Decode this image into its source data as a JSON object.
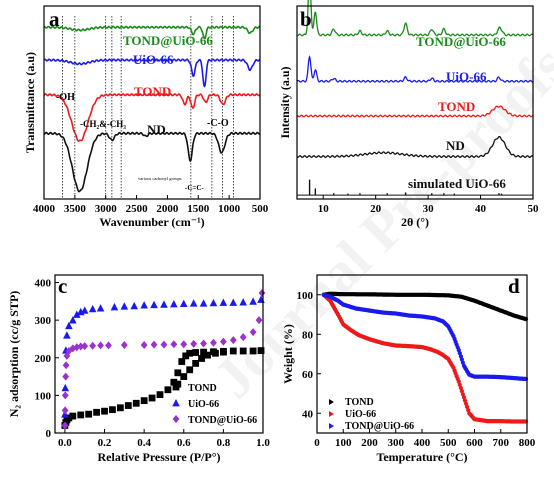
{
  "figure": {
    "watermark": "Journal Pre-proofs"
  },
  "chart_data": [
    {
      "panel": "a",
      "type": "line",
      "xlabel": "Wavenumber (cm⁻¹)",
      "ylabel": "Transmittance (a.u)",
      "xlim": [
        4000,
        500
      ],
      "x_ticks": [
        4000,
        3500,
        3000,
        2500,
        2000,
        1500,
        1000,
        500
      ],
      "annotations": {
        "oh": "-OH",
        "ch": "-CH₂&-CH₃",
        "co": "-C-O",
        "carbonyl": "various carbonyl groups",
        "cc": "-C=C-"
      },
      "vlines": [
        3700,
        3500,
        3000,
        2900,
        2750,
        1620,
        1280,
        1110,
        930
      ],
      "series": [
        {
          "name": "TOND@UiO-66",
          "color": "#1a8a1a",
          "baseline": 0.89,
          "peaks": [
            [
              1580,
              0.035,
              30
            ],
            [
              1400,
              0.06,
              25
            ],
            [
              660,
              0.03,
              40
            ],
            [
              3420,
              0.015,
              150
            ]
          ]
        },
        {
          "name": "UiO-66",
          "color": "#1a1aee",
          "baseline": 0.72,
          "peaks": [
            [
              1580,
              0.08,
              30
            ],
            [
              1400,
              0.14,
              25
            ],
            [
              660,
              0.05,
              40
            ],
            [
              3420,
              0.02,
              150
            ]
          ]
        },
        {
          "name": "TOND",
          "color": "#ee1a1a",
          "baseline": 0.54,
          "peaks": [
            [
              3420,
              0.24,
              130
            ],
            [
              1720,
              0.05,
              30
            ],
            [
              1590,
              0.07,
              30
            ],
            [
              1380,
              0.04,
              30
            ],
            [
              1100,
              0.05,
              40
            ]
          ]
        },
        {
          "name": "ND",
          "color": "#111111",
          "baseline": 0.34,
          "peaks": [
            [
              3420,
              0.3,
              120
            ],
            [
              2900,
              0.035,
              40
            ],
            [
              1630,
              0.14,
              35
            ],
            [
              1120,
              0.1,
              50
            ],
            [
              2350,
              0.015,
              30
            ]
          ]
        }
      ]
    },
    {
      "panel": "b",
      "type": "line",
      "xlabel": "2θ (°)",
      "ylabel": "Intensity (a.u)",
      "xlim": [
        5,
        50
      ],
      "x_ticks": [
        10,
        20,
        30,
        40,
        50
      ],
      "series": [
        {
          "name": "TOND@UiO-66",
          "color": "#1a8a1a",
          "baseline": 0.85,
          "peaks": [
            [
              7.4,
              0.3,
              0.25
            ],
            [
              8.5,
              0.12,
              0.25
            ],
            [
              12.0,
              0.03,
              0.3
            ],
            [
              17.0,
              0.02,
              0.3
            ],
            [
              22.2,
              0.02,
              0.3
            ],
            [
              25.7,
              0.06,
              0.3
            ],
            [
              30.7,
              0.03,
              0.3
            ],
            [
              33.0,
              0.03,
              0.3
            ],
            [
              43.5,
              0.03,
              0.3
            ],
            [
              44.0,
              0.02,
              0.3
            ]
          ]
        },
        {
          "name": "UiO-66",
          "color": "#1a1aee",
          "baseline": 0.61,
          "peaks": [
            [
              7.4,
              0.13,
              0.25
            ],
            [
              8.5,
              0.06,
              0.25
            ],
            [
              12.0,
              0.015,
              0.3
            ],
            [
              25.7,
              0.02,
              0.3
            ],
            [
              30.7,
              0.015,
              0.3
            ],
            [
              43.5,
              0.02,
              0.3
            ]
          ]
        },
        {
          "name": "TOND",
          "color": "#ee1a1a",
          "baseline": 0.43,
          "peaks": [
            [
              43.5,
              0.05,
              1.2
            ]
          ]
        },
        {
          "name": "ND",
          "color": "#111111",
          "baseline": 0.22,
          "peaks": [
            [
              21.5,
              0.02,
              3.5
            ],
            [
              43.5,
              0.1,
              1.2
            ]
          ]
        },
        {
          "name": "simulated UiO-66",
          "color": "#111111",
          "baseline": 0.02,
          "sticks": [
            [
              7.4,
              0.08
            ],
            [
              8.5,
              0.035
            ],
            [
              12.0,
              0.01
            ],
            [
              14.7,
              0.008
            ],
            [
              17.0,
              0.01
            ],
            [
              22.2,
              0.01
            ],
            [
              25.7,
              0.014
            ],
            [
              30.7,
              0.01
            ],
            [
              33.0,
              0.01
            ],
            [
              35.0,
              0.008
            ],
            [
              43.5,
              0.01
            ],
            [
              44.0,
              0.008
            ]
          ]
        }
      ]
    },
    {
      "panel": "c",
      "type": "scatter",
      "xlabel": "Relative Pressure (P/P°)",
      "ylabel": "N₂ adsorption (cc/g STP)",
      "xlim": [
        -0.05,
        1.0
      ],
      "ylim": [
        0,
        420
      ],
      "x_ticks": [
        0.0,
        0.2,
        0.4,
        0.6,
        0.8,
        1.0
      ],
      "x_tick_labels": [
        "0.0",
        "0.2",
        "0.4",
        "0.6",
        "0.8",
        "1.0"
      ],
      "y_ticks": [
        0,
        100,
        200,
        300,
        400
      ],
      "series": [
        {
          "name": "TOND",
          "color": "#000000",
          "marker": "square",
          "points": [
            [
              0.0,
              20
            ],
            [
              0.005,
              28
            ],
            [
              0.01,
              35
            ],
            [
              0.02,
              40
            ],
            [
              0.04,
              45
            ],
            [
              0.08,
              48
            ],
            [
              0.12,
              50
            ],
            [
              0.16,
              55
            ],
            [
              0.2,
              58
            ],
            [
              0.24,
              62
            ],
            [
              0.28,
              67
            ],
            [
              0.32,
              73
            ],
            [
              0.36,
              79
            ],
            [
              0.4,
              86
            ],
            [
              0.44,
              93
            ],
            [
              0.48,
              102
            ],
            [
              0.52,
              115
            ],
            [
              0.55,
              135
            ],
            [
              0.57,
              160
            ],
            [
              0.59,
              190
            ],
            [
              0.61,
              205
            ],
            [
              0.63,
              212
            ],
            [
              0.66,
              214
            ],
            [
              0.7,
              215
            ],
            [
              0.75,
              216
            ],
            [
              0.8,
              217
            ],
            [
              0.85,
              218
            ],
            [
              0.9,
              218
            ],
            [
              0.95,
              218
            ],
            [
              0.99,
              219
            ],
            [
              0.57,
              130
            ],
            [
              0.6,
              150
            ],
            [
              0.63,
              168
            ],
            [
              0.66,
              185
            ],
            [
              0.69,
              198
            ],
            [
              0.72,
              207
            ],
            [
              0.76,
              212
            ],
            [
              0.8,
              215
            ]
          ]
        },
        {
          "name": "UiO-66",
          "color": "#1a1aee",
          "marker": "triangle",
          "points": [
            [
              0.0,
              50
            ],
            [
              0.002,
              120
            ],
            [
              0.005,
              220
            ],
            [
              0.01,
              260
            ],
            [
              0.02,
              285
            ],
            [
              0.04,
              300
            ],
            [
              0.06,
              315
            ],
            [
              0.08,
              322
            ],
            [
              0.1,
              326
            ],
            [
              0.14,
              330
            ],
            [
              0.18,
              332
            ],
            [
              0.25,
              335
            ],
            [
              0.3,
              337
            ],
            [
              0.35,
              338
            ],
            [
              0.4,
              340
            ],
            [
              0.45,
              341
            ],
            [
              0.5,
              342
            ],
            [
              0.55,
              343
            ],
            [
              0.6,
              344
            ],
            [
              0.65,
              345
            ],
            [
              0.7,
              345
            ],
            [
              0.75,
              346
            ],
            [
              0.8,
              347
            ],
            [
              0.85,
              347
            ],
            [
              0.9,
              348
            ],
            [
              0.95,
              350
            ],
            [
              0.99,
              355
            ]
          ]
        },
        {
          "name": "TOND@UiO-66",
          "color": "#9a32cd",
          "marker": "diamond",
          "points": [
            [
              0.0,
              20
            ],
            [
              0.001,
              60
            ],
            [
              0.002,
              100
            ],
            [
              0.004,
              150
            ],
            [
              0.006,
              180
            ],
            [
              0.01,
              205
            ],
            [
              0.02,
              218
            ],
            [
              0.04,
              225
            ],
            [
              0.06,
              228
            ],
            [
              0.08,
              230
            ],
            [
              0.1,
              231
            ],
            [
              0.14,
              232
            ],
            [
              0.18,
              233
            ],
            [
              0.22,
              233
            ],
            [
              0.3,
              234
            ],
            [
              0.4,
              234
            ],
            [
              0.45,
              235
            ],
            [
              0.5,
              235
            ],
            [
              0.55,
              236
            ],
            [
              0.6,
              236
            ],
            [
              0.65,
              237
            ],
            [
              0.7,
              238
            ],
            [
              0.75,
              240
            ],
            [
              0.8,
              243
            ],
            [
              0.85,
              247
            ],
            [
              0.9,
              255
            ],
            [
              0.95,
              268
            ],
            [
              0.98,
              300
            ],
            [
              0.995,
              372
            ]
          ]
        }
      ]
    },
    {
      "panel": "d",
      "type": "line",
      "xlabel": "Temperature (°C)",
      "ylabel": "Weight (%)",
      "xlim": [
        0,
        800
      ],
      "ylim": [
        30,
        110
      ],
      "x_ticks": [
        0,
        100,
        200,
        300,
        400,
        500,
        600,
        700,
        800
      ],
      "y_ticks": [
        40,
        60,
        80,
        100
      ],
      "series": [
        {
          "name": "TOND",
          "color": "#000000",
          "points": [
            [
              25,
              100
            ],
            [
              50,
              100.5
            ],
            [
              100,
              100.3
            ],
            [
              200,
              100.2
            ],
            [
              300,
              100
            ],
            [
              400,
              100
            ],
            [
              500,
              99.7
            ],
            [
              550,
              99
            ],
            [
              600,
              97
            ],
            [
              650,
              94.5
            ],
            [
              700,
              92
            ],
            [
              750,
              89.5
            ],
            [
              800,
              87.5
            ]
          ]
        },
        {
          "name": "UiO-66",
          "color": "#ee1a1a",
          "points": [
            [
              25,
              100
            ],
            [
              50,
              97
            ],
            [
              80,
              90
            ],
            [
              100,
              85
            ],
            [
              130,
              82
            ],
            [
              160,
              79.5
            ],
            [
              200,
              77.5
            ],
            [
              250,
              75.5
            ],
            [
              300,
              74.3
            ],
            [
              350,
              74
            ],
            [
              400,
              73.5
            ],
            [
              430,
              72.5
            ],
            [
              460,
              71
            ],
            [
              480,
              69.5
            ],
            [
              500,
              67.5
            ],
            [
              520,
              63
            ],
            [
              540,
              56
            ],
            [
              560,
              48
            ],
            [
              580,
              40
            ],
            [
              600,
              37
            ],
            [
              650,
              36
            ],
            [
              700,
              36
            ],
            [
              750,
              35.8
            ],
            [
              800,
              35.8
            ]
          ]
        },
        {
          "name": "TOND@UiO-66",
          "color": "#1a1aee",
          "points": [
            [
              25,
              100
            ],
            [
              50,
              99
            ],
            [
              80,
              97
            ],
            [
              100,
              95
            ],
            [
              150,
              93
            ],
            [
              200,
              92
            ],
            [
              250,
              91
            ],
            [
              300,
              90.5
            ],
            [
              350,
              89.5
            ],
            [
              400,
              89
            ],
            [
              450,
              88
            ],
            [
              480,
              86.5
            ],
            [
              500,
              84
            ],
            [
              520,
              79
            ],
            [
              540,
              72
            ],
            [
              560,
              64
            ],
            [
              580,
              59.5
            ],
            [
              600,
              58.5
            ],
            [
              650,
              58.5
            ],
            [
              700,
              58.3
            ],
            [
              750,
              57.8
            ],
            [
              800,
              57.3
            ]
          ]
        }
      ]
    }
  ]
}
